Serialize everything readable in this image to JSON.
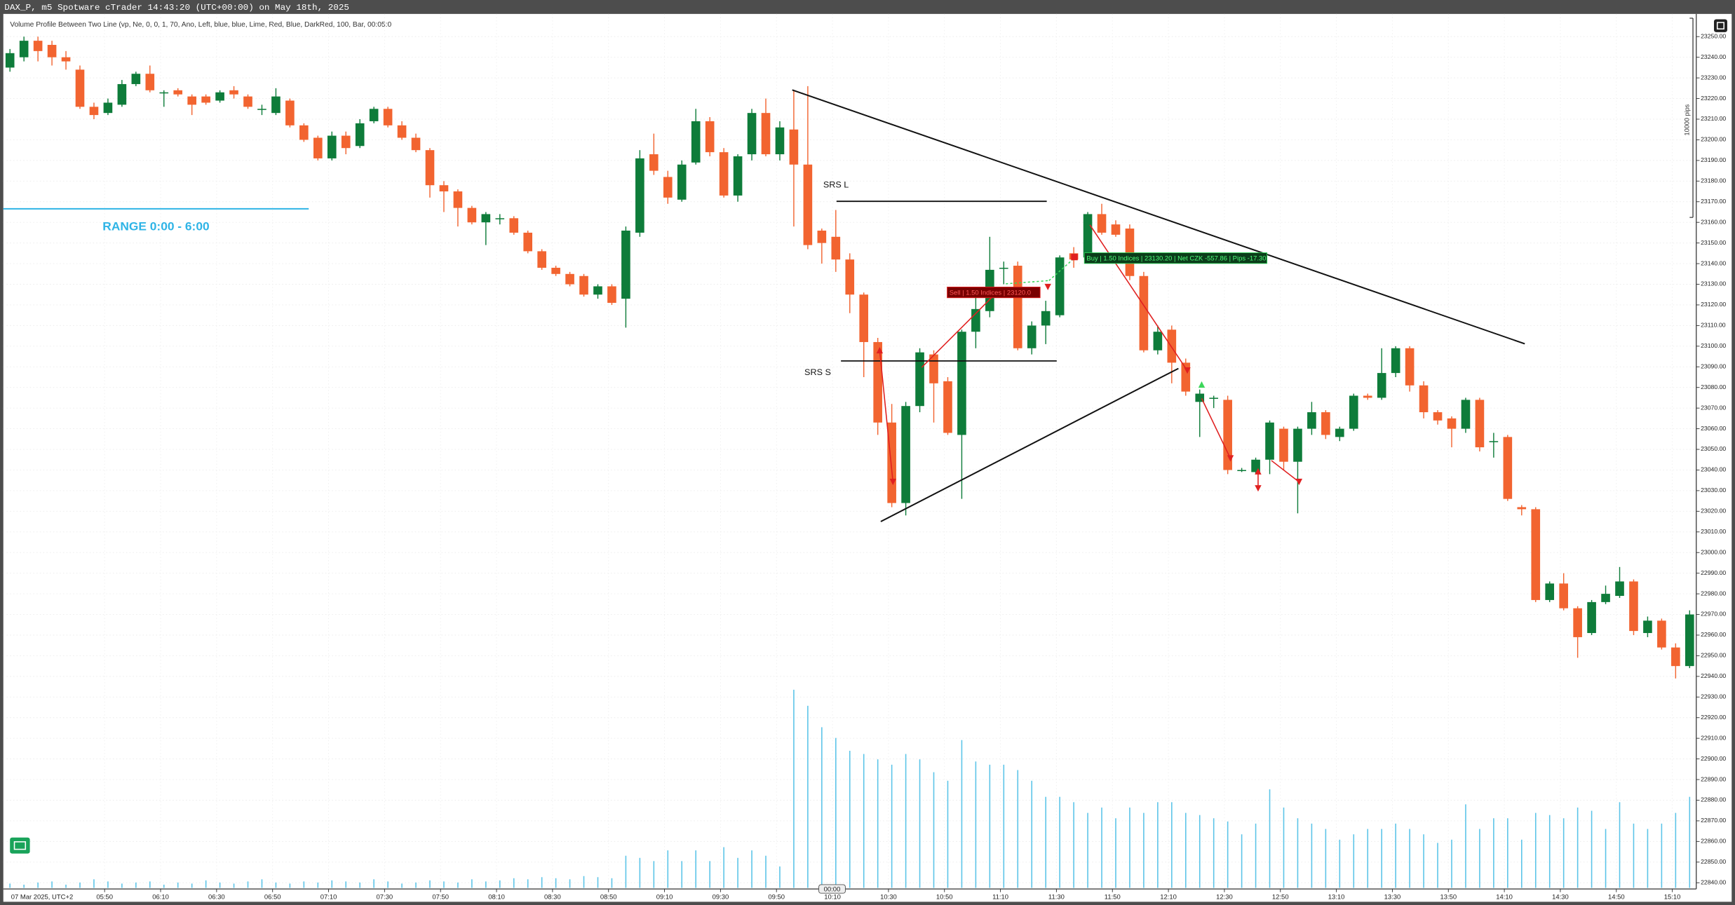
{
  "chart_data": {
    "type": "candlestick",
    "title": "DAX_P, m5 Spotware cTrader 14:43:20 (UTC+00:00) on May 18th, 2025",
    "subtitle": "Volume Profile Between Two Line (vp, Ne, 0, 0, 1, 70, Ano, Left, blue, blue, Lime, Red, Blue, DarkRed, 100, Bar, 00:05:0",
    "y_axis_label": "10000 pips",
    "annotations": [
      "RANGE 0:00 - 6:00",
      "SRS L",
      "SRS S",
      "Sell | 1.50 Indices | 23120.0",
      "Buy | 1.50 Indices | 23130.20 | Net CZK -557.86 | Pips -17.30",
      "00:00"
    ],
    "categories": [
      "07 Mar 2025, UTC+2",
      null,
      null,
      null,
      null,
      null,
      null,
      "05:50",
      null,
      null,
      null,
      "06:10",
      null,
      null,
      null,
      "06:30",
      null,
      null,
      null,
      "06:50",
      null,
      null,
      null,
      "07:10",
      null,
      null,
      null,
      "07:30",
      null,
      null,
      null,
      "07:50",
      null,
      null,
      null,
      "08:10",
      null,
      null,
      null,
      "08:30",
      null,
      null,
      null,
      "08:50",
      null,
      null,
      null,
      "09:10",
      null,
      null,
      null,
      "09:30",
      null,
      null,
      null,
      "09:50",
      null,
      null,
      null,
      "10:10",
      null,
      null,
      null,
      "10:30",
      null,
      null,
      null,
      "10:50",
      null,
      null,
      null,
      "11:10",
      null,
      null,
      null,
      "11:30",
      null,
      null,
      null,
      "11:50",
      null,
      null,
      null,
      "12:10",
      null,
      null,
      null,
      "12:30",
      null,
      null,
      null,
      "12:50",
      null,
      null,
      null,
      "13:10",
      null,
      null,
      null,
      "13:30",
      null,
      null,
      null,
      "13:50",
      null,
      null,
      null,
      "14:10",
      null,
      null,
      null,
      "14:30",
      null,
      null,
      null,
      "14:50",
      null,
      null,
      null,
      "15:10",
      null
    ],
    "open": [
      23235,
      23240,
      23248,
      23246,
      23240,
      23234,
      23216,
      23213,
      23217,
      23227,
      23232,
      23223,
      23224,
      23221,
      23221,
      23219,
      23224,
      23221,
      23215,
      23213,
      23219,
      23207,
      23201,
      23191,
      23202,
      23197,
      23209,
      23215,
      23207,
      23201,
      23195,
      23178,
      23175,
      23167,
      23160,
      23162,
      23162,
      23155,
      23146,
      23138,
      23135,
      23134,
      23125,
      23129,
      23123,
      23155,
      23193,
      23182,
      23171,
      23189,
      23209,
      23194,
      23173,
      23193,
      23213,
      23193,
      23205,
      23188,
      23156,
      23153,
      23142,
      23125,
      23102,
      23063,
      23024,
      23071,
      23096,
      23083,
      23057,
      23107,
      23117,
      23138,
      23139,
      23099,
      23110,
      23115,
      23145,
      23143,
      23164,
      23159,
      23157,
      23134,
      23098,
      23108,
      23092,
      23073,
      23075,
      23074,
      23040,
      23039,
      23045,
      23060,
      23044,
      23060,
      23068,
      23056,
      23060,
      23076,
      23075,
      23087,
      23099,
      23081,
      23068,
      23065,
      23060,
      23074,
      23054,
      23056,
      23022,
      23021,
      22977,
      22985,
      22973,
      22961,
      22976,
      22979,
      22986,
      22961,
      22967,
      22954,
      22945
    ],
    "high": [
      23244,
      23250,
      23250,
      23248,
      23243,
      23236,
      23218,
      23220,
      23229,
      23233,
      23236,
      23224,
      23225,
      23222,
      23222,
      23224,
      23226,
      23222,
      23217,
      23225,
      23220,
      23208,
      23202,
      23204,
      23204,
      23210,
      23216,
      23216,
      23209,
      23203,
      23196,
      23180,
      23176,
      23168,
      23165,
      23164,
      23163,
      23156,
      23147,
      23139,
      23136,
      23135,
      23130,
      23130,
      23158,
      23195,
      23203,
      23185,
      23190,
      23215,
      23211,
      23196,
      23193,
      23215,
      23220,
      23209,
      23224,
      23226,
      23157,
      23166,
      23145,
      23126,
      23104,
      23072,
      23073,
      23099,
      23098,
      23085,
      23108,
      23124,
      23153,
      23141,
      23141,
      23112,
      23122,
      23144,
      23148,
      23165,
      23169,
      23161,
      23159,
      23136,
      23110,
      23110,
      23094,
      23079,
      23076,
      23076,
      23041,
      23046,
      23064,
      23061,
      23061,
      23073,
      23069,
      23061,
      23077,
      23077,
      23099,
      23100,
      23100,
      23083,
      23069,
      23066,
      23075,
      23075,
      23058,
      23057,
      23023,
      23022,
      22986,
      22990,
      22974,
      22977,
      22984,
      22993,
      22987,
      22969,
      22968,
      22956,
      22972
    ],
    "low": [
      23233,
      23238,
      23238,
      23236,
      23234,
      23215,
      23210,
      23212,
      23216,
      23226,
      23223,
      23216,
      23221,
      23212,
      23217,
      23218,
      23220,
      23215,
      23212,
      23212,
      23206,
      23199,
      23190,
      23190,
      23193,
      23196,
      23208,
      23206,
      23200,
      23194,
      23172,
      23165,
      23158,
      23159,
      23149,
      23159,
      23154,
      23145,
      23137,
      23134,
      23129,
      23124,
      23123,
      23120,
      23109,
      23153,
      23183,
      23169,
      23170,
      23188,
      23192,
      23172,
      23170,
      23190,
      23192,
      23190,
      23158,
      23147,
      23140,
      23136,
      23116,
      23085,
      23057,
      23022,
      23018,
      23068,
      23063,
      23057,
      23026,
      23099,
      23114,
      23130,
      23098,
      23096,
      23101,
      23114,
      23138,
      23140,
      23154,
      23153,
      23132,
      23097,
      23096,
      23082,
      23076,
      23056,
      23070,
      23038,
      23039,
      23038,
      23038,
      23040,
      23019,
      23057,
      23055,
      23054,
      23059,
      23074,
      23074,
      23085,
      23078,
      23065,
      23062,
      23051,
      23058,
      23049,
      23046,
      23025,
      23018,
      22976,
      22976,
      22972,
      22949,
      22960,
      22975,
      22978,
      22960,
      22959,
      22953,
      22939,
      22944
    ],
    "close": [
      23242,
      23248,
      23243,
      23240,
      23238,
      23216,
      23212,
      23218,
      23227,
      23232,
      23224,
      23223,
      23222,
      23217,
      23218,
      23223,
      23222,
      23216,
      23215,
      23221,
      23207,
      23200,
      23191,
      23202,
      23196,
      23208,
      23215,
      23207,
      23201,
      23195,
      23178,
      23175,
      23167,
      23160,
      23164,
      23162,
      23155,
      23146,
      23138,
      23135,
      23130,
      23125,
      23129,
      23121,
      23156,
      23191,
      23185,
      23172,
      23188,
      23209,
      23194,
      23173,
      23192,
      23213,
      23193,
      23206,
      23188,
      23149,
      23150,
      23142,
      23125,
      23102,
      23063,
      23024,
      23071,
      23097,
      23082,
      23058,
      23107,
      23118,
      23137,
      23138,
      23099,
      23110,
      23117,
      23143,
      23142,
      23164,
      23155,
      23154,
      23134,
      23098,
      23107,
      23092,
      23078,
      23077,
      23075,
      23040,
      23040,
      23045,
      23063,
      23044,
      23060,
      23068,
      23057,
      23060,
      23076,
      23075,
      23087,
      23099,
      23081,
      23068,
      23064,
      23060,
      23074,
      23051,
      23054,
      23026,
      23021,
      22977,
      22985,
      22973,
      22959,
      22976,
      22980,
      22986,
      22962,
      22967,
      22954,
      22945,
      22970
    ],
    "volume": [
      4,
      3,
      5,
      6,
      3,
      5,
      8,
      6,
      4,
      5,
      6,
      3,
      5,
      4,
      7,
      5,
      4,
      6,
      8,
      5,
      4,
      6,
      5,
      7,
      6,
      5,
      8,
      6,
      4,
      5,
      7,
      6,
      5,
      8,
      6,
      7,
      9,
      8,
      10,
      9,
      8,
      11,
      10,
      9,
      30,
      28,
      25,
      35,
      25,
      35,
      25,
      38,
      28,
      35,
      30,
      20,
      185,
      170,
      150,
      140,
      128,
      125,
      120,
      115,
      125,
      120,
      108,
      100,
      138,
      118,
      115,
      115,
      110,
      100,
      85,
      85,
      80,
      70,
      75,
      65,
      75,
      70,
      80,
      80,
      70,
      68,
      65,
      62,
      50,
      60,
      92,
      75,
      65,
      60,
      55,
      45,
      50,
      55,
      55,
      60,
      55,
      50,
      42,
      45,
      78,
      55,
      65,
      65,
      45,
      70,
      68,
      65,
      75,
      72,
      55,
      80,
      60,
      55,
      60,
      70,
      85
    ],
    "up_color": "#0e7c3a",
    "down_color": "#f26430",
    "volume_color": "#5bc4e8",
    "ylim": [
      22837,
      23261
    ],
    "yticks": [
      {
        "value": 22840,
        "label": "22840.00"
      },
      {
        "value": 22850,
        "label": "22850.00"
      },
      {
        "value": 22860,
        "label": "22860.00"
      },
      {
        "value": 22870,
        "label": "22870.00"
      },
      {
        "value": 22880,
        "label": "22880.00"
      },
      {
        "value": 22890,
        "label": "22890.00"
      },
      {
        "value": 22900,
        "label": "22900.00"
      },
      {
        "value": 22910,
        "label": "22910.00"
      },
      {
        "value": 22920,
        "label": "22920.00"
      },
      {
        "value": 22930,
        "label": "22930.00"
      },
      {
        "value": 22940,
        "label": "22940.00"
      },
      {
        "value": 22950,
        "label": "22950.00"
      },
      {
        "value": 22960,
        "label": "22960.00"
      },
      {
        "value": 22970,
        "label": "22970.00"
      },
      {
        "value": 22980,
        "label": "22980.00"
      },
      {
        "value": 22990,
        "label": "22990.00"
      },
      {
        "value": 23000,
        "label": "23000.00"
      },
      {
        "value": 23010,
        "label": "23010.00"
      },
      {
        "value": 23020,
        "label": "23020.00"
      },
      {
        "value": 23030,
        "label": "23030.00"
      },
      {
        "value": 23040,
        "label": "23040.00"
      },
      {
        "value": 23050,
        "label": "23050.00"
      },
      {
        "value": 23060,
        "label": "23060.00"
      },
      {
        "value": 23070,
        "label": "23070.00"
      },
      {
        "value": 23080,
        "label": "23080.00"
      },
      {
        "value": 23090,
        "label": "23090.00"
      },
      {
        "value": 23100,
        "label": "23100.00"
      },
      {
        "value": 23110,
        "label": "23110.00"
      },
      {
        "value": 23120,
        "label": "23120.00"
      },
      {
        "value": 23130,
        "label": "23130.00"
      },
      {
        "value": 23140,
        "label": "23140.00"
      },
      {
        "value": 23150,
        "label": "23150.00"
      },
      {
        "value": 23160,
        "label": "23160.00"
      },
      {
        "value": 23170,
        "label": "23170.00"
      },
      {
        "value": 23180,
        "label": "23180.00"
      },
      {
        "value": 23190,
        "label": "23190.00"
      },
      {
        "value": 23200,
        "label": "23200.00"
      },
      {
        "value": 23210,
        "label": "23210.00"
      },
      {
        "value": 23220,
        "label": "23220.00"
      },
      {
        "value": 23230,
        "label": "23230.00"
      },
      {
        "value": 23240,
        "label": "23240.00"
      },
      {
        "value": 23250,
        "label": "23250.00"
      }
    ],
    "grid": true
  }
}
